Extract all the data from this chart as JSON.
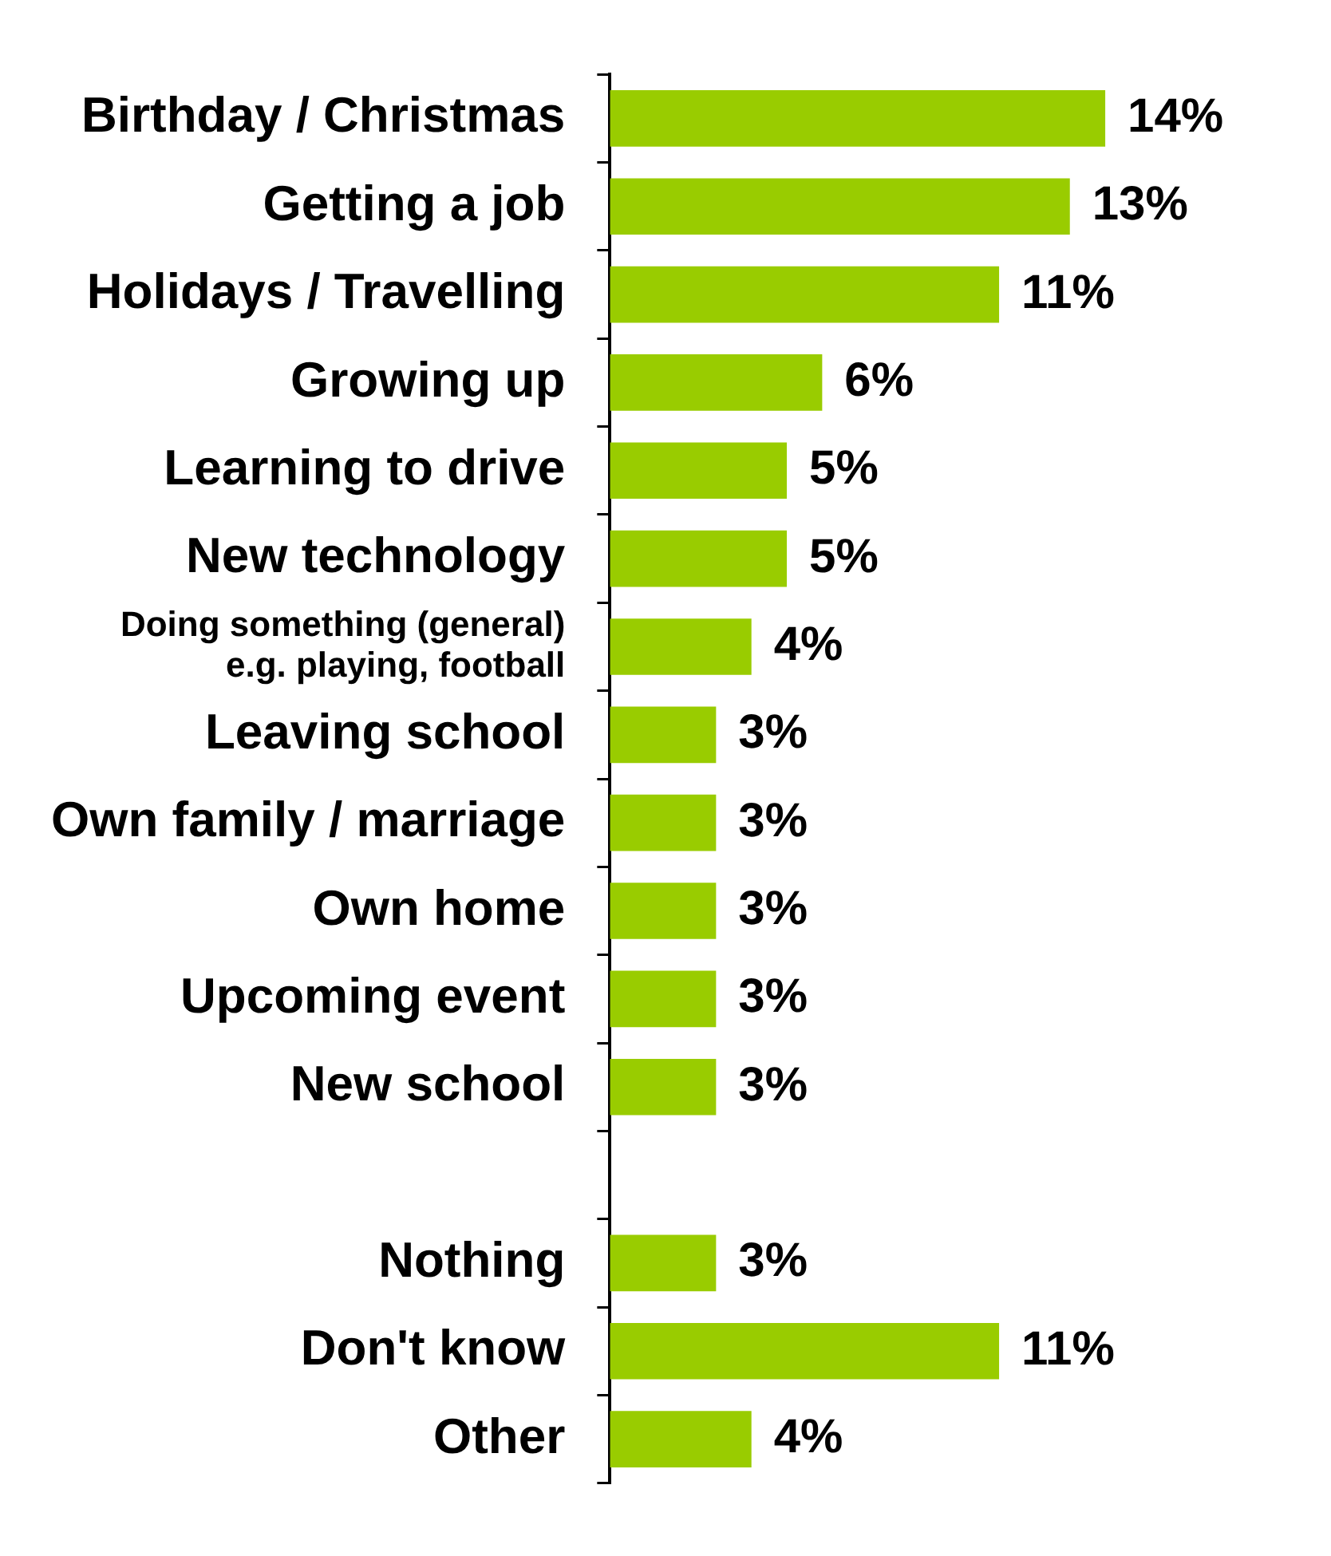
{
  "chart_data": {
    "type": "bar",
    "orientation": "horizontal",
    "categories": [
      "Birthday / Christmas",
      "Getting a job",
      "Holidays / Travelling",
      "Growing up",
      "Learning to drive",
      "New technology",
      "Doing something (general)\ne.g. playing, football",
      "Leaving school",
      "Own family / marriage",
      "Own home",
      "Upcoming event",
      "New school",
      null,
      "Nothing",
      "Don't know",
      "Other"
    ],
    "values": [
      14,
      13,
      11,
      6,
      5,
      5,
      4,
      3,
      3,
      3,
      3,
      3,
      null,
      3,
      11,
      4
    ],
    "value_labels": [
      "14%",
      "13%",
      "11%",
      "6%",
      "5%",
      "5%",
      "4%",
      "3%",
      "3%",
      "3%",
      "3%",
      "3%",
      null,
      "3%",
      "11%",
      "4%"
    ],
    "color": "#99cc00",
    "legend": false
  }
}
